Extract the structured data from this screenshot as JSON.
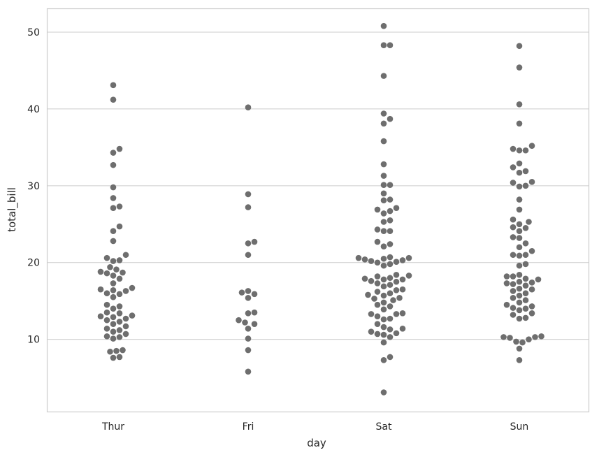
{
  "chart_data": {
    "type": "scatter",
    "subtype": "swarm",
    "title": "",
    "xlabel": "day",
    "ylabel": "total_bill",
    "categories": [
      "Thur",
      "Fri",
      "Sat",
      "Sun"
    ],
    "ylim": [
      0.6,
      53.0
    ],
    "yticks": [
      10,
      20,
      30,
      40,
      50
    ],
    "grid": true,
    "point_color": "#6e6e6e",
    "grid_color": "#cccccc",
    "series": [
      {
        "category": "Thur",
        "values": [
          43.1,
          41.2,
          34.8,
          34.3,
          32.7,
          29.8,
          28.4,
          27.3,
          27.1,
          24.7,
          24.1,
          22.8,
          21.0,
          20.6,
          20.3,
          20.2,
          19.4,
          19.1,
          18.8,
          18.7,
          18.6,
          18.3,
          17.9,
          17.3,
          16.7,
          16.5,
          16.4,
          16.3,
          16.0,
          15.9,
          15.5,
          14.5,
          14.3,
          14.0,
          13.5,
          13.4,
          13.1,
          13.0,
          12.9,
          12.7,
          12.5,
          12.3,
          12.0,
          11.7,
          11.4,
          11.2,
          11.0,
          10.7,
          10.4,
          10.3,
          10.1,
          8.6,
          8.5,
          8.4,
          7.7,
          7.6
        ]
      },
      {
        "category": "Fri",
        "values": [
          40.2,
          28.9,
          27.2,
          22.7,
          22.5,
          21.0,
          16.3,
          16.1,
          15.9,
          15.4,
          13.5,
          13.4,
          12.5,
          12.2,
          12.0,
          11.4,
          10.1,
          8.6,
          5.8
        ]
      },
      {
        "category": "Sat",
        "values": [
          50.8,
          48.3,
          48.3,
          44.3,
          39.4,
          38.7,
          38.1,
          35.8,
          32.8,
          31.3,
          30.1,
          30.1,
          29.0,
          28.2,
          28.1,
          27.1,
          26.9,
          26.7,
          26.4,
          25.5,
          25.3,
          24.3,
          24.1,
          24.1,
          22.7,
          22.4,
          22.1,
          20.7,
          20.6,
          20.6,
          20.5,
          20.4,
          20.3,
          20.2,
          20.1,
          20.0,
          19.8,
          19.6,
          18.4,
          18.3,
          18.2,
          18.0,
          17.9,
          17.8,
          17.8,
          17.6,
          17.5,
          17.3,
          17.1,
          16.9,
          16.5,
          16.4,
          16.2,
          16.0,
          15.8,
          15.7,
          15.4,
          15.3,
          15.1,
          14.8,
          14.5,
          14.3,
          13.9,
          13.4,
          13.3,
          13.3,
          13.0,
          12.7,
          12.6,
          12.0,
          11.6,
          11.4,
          11.3,
          11.0,
          10.8,
          10.7,
          10.6,
          10.3,
          9.6,
          7.7,
          7.3,
          3.1
        ]
      },
      {
        "category": "Sun",
        "values": [
          48.2,
          45.4,
          40.6,
          38.1,
          35.2,
          34.8,
          34.6,
          34.6,
          32.9,
          32.4,
          31.9,
          31.7,
          30.5,
          30.4,
          30.0,
          29.9,
          28.2,
          26.9,
          25.6,
          25.3,
          25.0,
          24.6,
          24.5,
          24.1,
          23.3,
          23.2,
          22.5,
          22.0,
          21.5,
          21.0,
          21.0,
          20.9,
          19.8,
          19.6,
          18.4,
          18.2,
          18.2,
          17.9,
          17.8,
          17.5,
          17.4,
          17.3,
          17.2,
          17.0,
          16.6,
          16.5,
          16.3,
          16.0,
          15.7,
          15.4,
          15.1,
          14.8,
          14.5,
          14.3,
          14.1,
          14.0,
          13.8,
          13.4,
          13.2,
          12.8,
          12.7,
          10.4,
          10.3,
          10.3,
          10.2,
          10.0,
          9.7,
          9.6,
          8.8,
          7.3
        ]
      }
    ]
  }
}
